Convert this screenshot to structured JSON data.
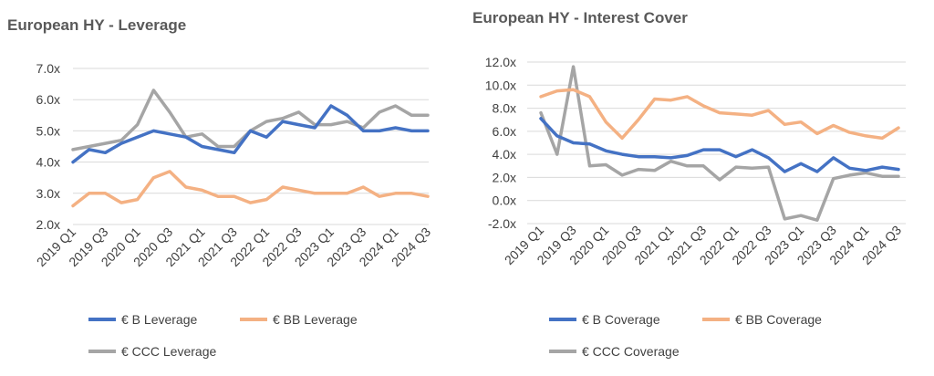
{
  "colors": {
    "B": "#4472C4",
    "BB": "#F4B183",
    "CCC": "#A5A5A5",
    "grid": "#D9D9D9",
    "text": "#404040",
    "title": "#595959"
  },
  "chart_data": [
    {
      "type": "line",
      "title": "European HY - Leverage",
      "xlabel": "",
      "ylabel": "",
      "ylim": [
        2.0,
        7.0
      ],
      "yticks": [
        "2.0x",
        "3.0x",
        "4.0x",
        "5.0x",
        "6.0x",
        "7.0x"
      ],
      "grid": true,
      "legend_position": "bottom",
      "x": [
        "2019 Q1",
        "2019 Q2",
        "2019 Q3",
        "2019 Q4",
        "2020 Q1",
        "2020 Q2",
        "2020 Q3",
        "2020 Q4",
        "2021 Q1",
        "2021 Q2",
        "2021 Q3",
        "2021 Q4",
        "2022 Q1",
        "2022 Q2",
        "2022 Q3",
        "2022 Q4",
        "2023 Q1",
        "2023 Q2",
        "2023 Q3",
        "2023 Q4",
        "2024 Q1",
        "2024 Q2",
        "2024 Q3"
      ],
      "xtick_labels": [
        "2019 Q1",
        "2019 Q3",
        "2020 Q1",
        "2020 Q3",
        "2021 Q1",
        "2021 Q3",
        "2022 Q1",
        "2022 Q3",
        "2023 Q1",
        "2023 Q3",
        "2024 Q1",
        "2024 Q3"
      ],
      "series": [
        {
          "name": "€ B Leverage",
          "key": "B",
          "values": [
            4.0,
            4.4,
            4.3,
            4.6,
            4.8,
            5.0,
            4.9,
            4.8,
            4.5,
            4.4,
            4.3,
            5.0,
            4.8,
            5.3,
            5.2,
            5.1,
            5.8,
            5.5,
            5.0,
            5.0,
            5.1,
            5.0,
            5.0
          ]
        },
        {
          "name": "€ BB Leverage",
          "key": "BB",
          "values": [
            2.6,
            3.0,
            3.0,
            2.7,
            2.8,
            3.5,
            3.7,
            3.2,
            3.1,
            2.9,
            2.9,
            2.7,
            2.8,
            3.2,
            3.1,
            3.0,
            3.0,
            3.0,
            3.2,
            2.9,
            3.0,
            3.0,
            2.9
          ]
        },
        {
          "name": "€ CCC Leverage",
          "key": "CCC",
          "values": [
            4.4,
            4.5,
            4.6,
            4.7,
            5.2,
            6.3,
            5.6,
            4.8,
            4.9,
            4.5,
            4.5,
            5.0,
            5.3,
            5.4,
            5.6,
            5.2,
            5.2,
            5.3,
            5.1,
            5.6,
            5.8,
            5.5,
            5.5
          ]
        }
      ]
    },
    {
      "type": "line",
      "title": "European HY - Interest Cover",
      "xlabel": "",
      "ylabel": "",
      "ylim": [
        -2.0,
        12.0
      ],
      "yticks": [
        "-2.0x",
        "0.0x",
        "2.0x",
        "4.0x",
        "6.0x",
        "8.0x",
        "10.0x",
        "12.0x"
      ],
      "grid": true,
      "legend_position": "bottom",
      "x": [
        "2019 Q1",
        "2019 Q2",
        "2019 Q3",
        "2019 Q4",
        "2020 Q1",
        "2020 Q2",
        "2020 Q3",
        "2020 Q4",
        "2021 Q1",
        "2021 Q2",
        "2021 Q3",
        "2021 Q4",
        "2022 Q1",
        "2022 Q2",
        "2022 Q3",
        "2022 Q4",
        "2023 Q1",
        "2023 Q2",
        "2023 Q3",
        "2023 Q4",
        "2024 Q1",
        "2024 Q2",
        "2024 Q3"
      ],
      "xtick_labels": [
        "2019 Q1",
        "2019 Q3",
        "2020 Q1",
        "2020 Q3",
        "2021 Q1",
        "2021 Q3",
        "2022 Q1",
        "2022 Q3",
        "2023 Q1",
        "2023 Q3",
        "2024 Q1",
        "2024 Q3"
      ],
      "series": [
        {
          "name": "€ B Coverage",
          "key": "B",
          "values": [
            7.1,
            5.6,
            5.0,
            4.9,
            4.3,
            4.0,
            3.8,
            3.8,
            3.7,
            3.9,
            4.4,
            4.4,
            3.8,
            4.4,
            3.7,
            2.5,
            3.2,
            2.5,
            3.7,
            2.8,
            2.6,
            2.9,
            2.7
          ]
        },
        {
          "name": "€ BB Coverage",
          "key": "BB",
          "values": [
            9.0,
            9.5,
            9.6,
            9.0,
            6.8,
            5.4,
            7.0,
            8.8,
            8.7,
            9.0,
            8.2,
            7.6,
            7.5,
            7.4,
            7.8,
            6.6,
            6.8,
            5.8,
            6.5,
            5.9,
            5.6,
            5.4,
            6.3
          ]
        },
        {
          "name": "€ CCC Coverage",
          "key": "CCC",
          "values": [
            7.6,
            4.0,
            11.6,
            3.0,
            3.1,
            2.2,
            2.7,
            2.6,
            3.4,
            3.0,
            3.0,
            1.8,
            2.9,
            2.8,
            2.9,
            -1.6,
            -1.3,
            -1.7,
            1.9,
            2.2,
            2.4,
            2.1,
            2.1
          ]
        }
      ]
    }
  ]
}
